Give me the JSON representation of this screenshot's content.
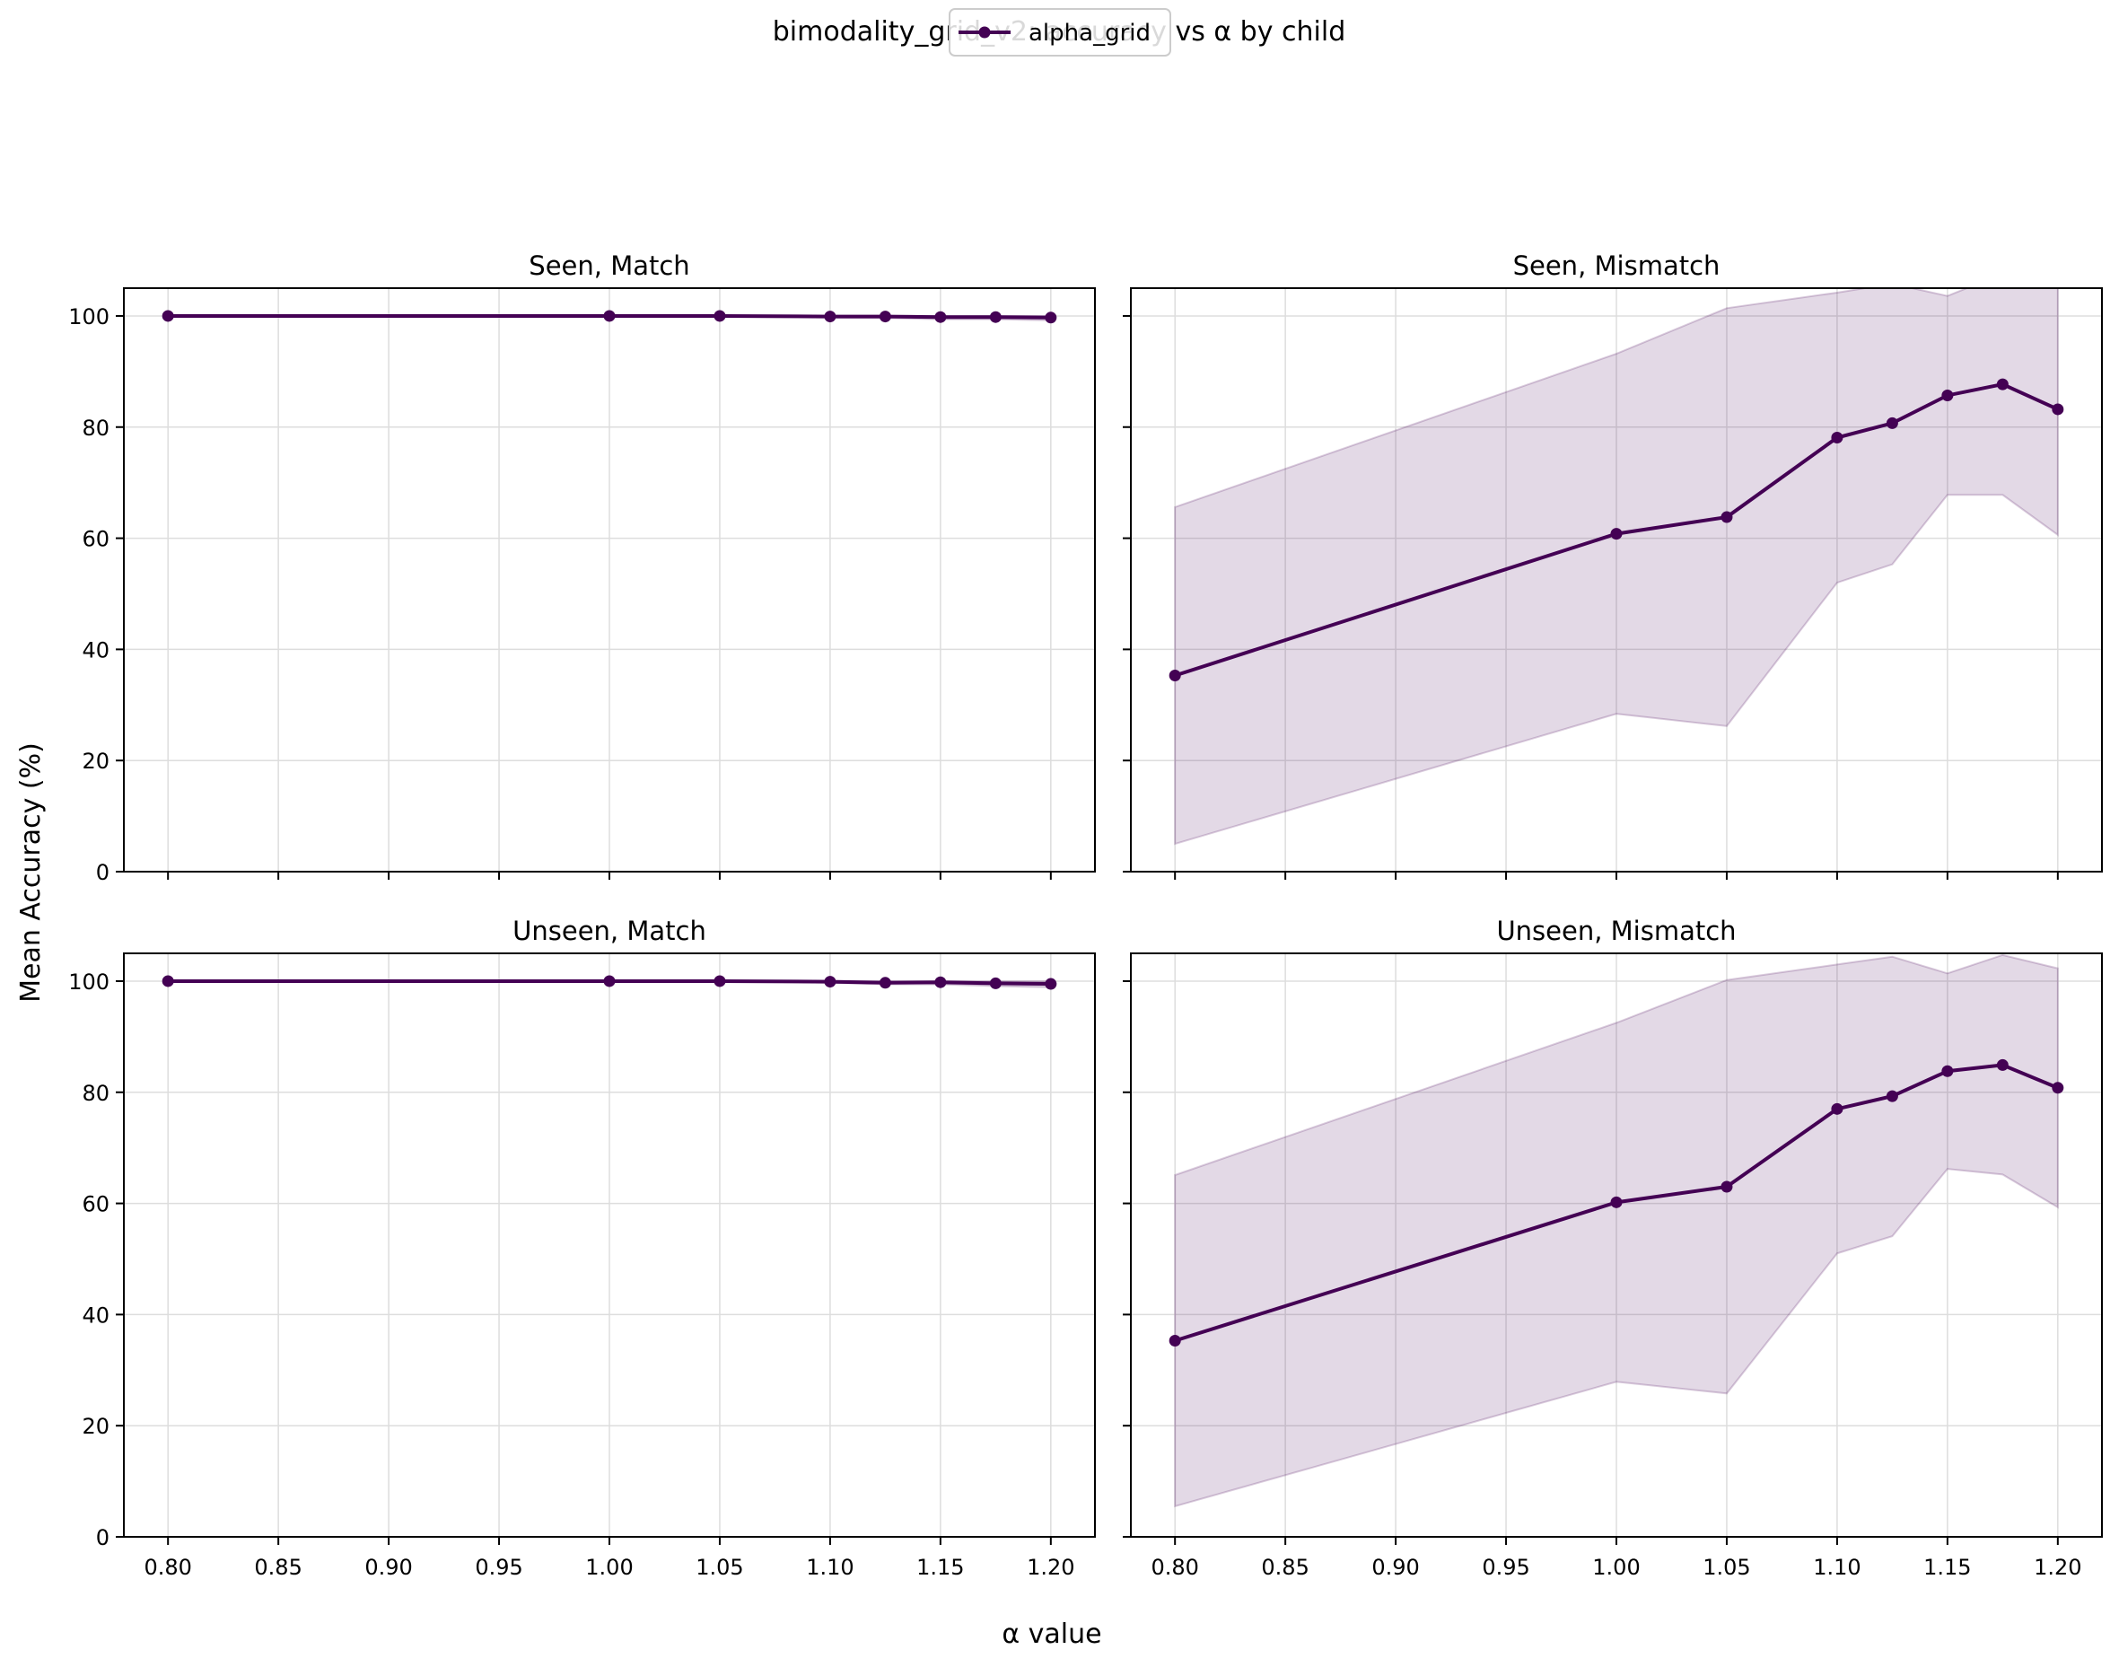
{
  "chart_data": {
    "type": "line",
    "title": "bimodality_grid_v2: accuracy vs α by child",
    "xlabel": "α value",
    "ylabel": "Mean Accuracy (%)",
    "legend": {
      "placement": "top-center",
      "entries": [
        "alpha_grid"
      ]
    },
    "grid": true,
    "xlim": [
      0.78,
      1.22
    ],
    "ylim": [
      0,
      105
    ],
    "xticks": [
      "0.80",
      "0.85",
      "0.90",
      "0.95",
      "1.00",
      "1.05",
      "1.10",
      "1.15",
      "1.20"
    ],
    "yticks": [
      "0",
      "20",
      "40",
      "60",
      "80",
      "100"
    ],
    "x": [
      0.8,
      1.0,
      1.05,
      1.1,
      1.125,
      1.15,
      1.175,
      1.2
    ],
    "colors": {
      "line": "#440154",
      "band": "#440154"
    },
    "panels": [
      {
        "title": "Seen, Match",
        "series": [
          {
            "name": "alpha_grid",
            "values": [
              100,
              100,
              100,
              99.9,
              99.9,
              99.8,
              99.8,
              99.7
            ],
            "lower": [
              100,
              100,
              99.9,
              99.7,
              99.6,
              99.4,
              99.4,
              99.2
            ],
            "upper": [
              100,
              100,
              100,
              100,
              100,
              100,
              100,
              100
            ]
          }
        ]
      },
      {
        "title": "Seen, Mismatch",
        "series": [
          {
            "name": "alpha_grid",
            "values": [
              35.3,
              60.8,
              63.8,
              78.1,
              80.7,
              85.7,
              87.7,
              83.2
            ],
            "lower": [
              5,
              28.4,
              26.2,
              52,
              55.3,
              67.8,
              67.8,
              60.6
            ],
            "upper": [
              65.6,
              93.2,
              101.4,
              104.2,
              105.8,
              103.6,
              107.6,
              106
            ]
          }
        ]
      },
      {
        "title": "Unseen, Match",
        "series": [
          {
            "name": "alpha_grid",
            "values": [
              100,
              100,
              100,
              99.9,
              99.7,
              99.8,
              99.6,
              99.5
            ],
            "lower": [
              100,
              100,
              100,
              99.7,
              99.4,
              99.4,
              99.1,
              98.9
            ],
            "upper": [
              100,
              100,
              100,
              100,
              100,
              100,
              100,
              100
            ]
          }
        ]
      },
      {
        "title": "Unseen, Mismatch",
        "series": [
          {
            "name": "alpha_grid",
            "values": [
              35.3,
              60.2,
              63,
              77,
              79.3,
              83.8,
              84.9,
              80.8
            ],
            "lower": [
              5.5,
              27.9,
              25.8,
              51,
              54.1,
              66.2,
              65.2,
              59.3
            ],
            "upper": [
              65.1,
              92.5,
              100.2,
              103,
              104.4,
              101.4,
              104.7,
              102.3
            ]
          }
        ]
      }
    ]
  }
}
